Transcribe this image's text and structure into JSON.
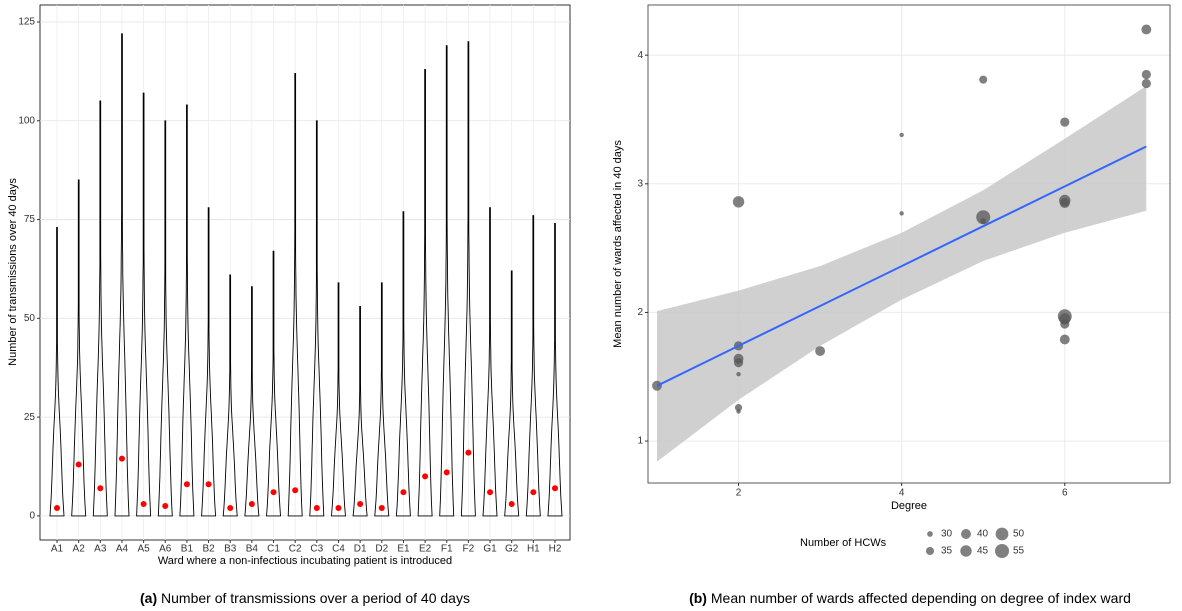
{
  "chart_data": [
    {
      "type": "violin",
      "x_label": "Ward where a non-infectious incubating patient is introduced",
      "y_label": "Number of transmissions over 40 days",
      "caption_label": "(a)",
      "caption": "Number of transmissions over a period of 40 days",
      "categories": [
        "A1",
        "A2",
        "A3",
        "A4",
        "A5",
        "A6",
        "B1",
        "B2",
        "B3",
        "B4",
        "C1",
        "C2",
        "C3",
        "C4",
        "D1",
        "D2",
        "E1",
        "E2",
        "F1",
        "F2",
        "G1",
        "G2",
        "H1",
        "H2"
      ],
      "max_values": [
        73,
        85,
        105,
        122,
        107,
        100,
        104,
        78,
        61,
        58,
        67,
        112,
        100,
        59,
        53,
        59,
        77,
        113,
        119,
        120,
        78,
        62,
        76,
        74
      ],
      "values": [
        2,
        13,
        7,
        14.5,
        3,
        2.5,
        8,
        8,
        2,
        3,
        6,
        6.5,
        2,
        2,
        3,
        2,
        6,
        10,
        11,
        16,
        6,
        3,
        6,
        7
      ],
      "color": "#ff0000",
      "ylim": [
        -6.1,
        129.3
      ],
      "yticks": [
        0,
        25,
        50,
        75,
        100,
        125
      ],
      "grid": true
    },
    {
      "type": "scatter",
      "x_label": "Degree",
      "y_label": "Mean number of wards affected in 40 days",
      "caption_label": "(b)",
      "caption": "Mean number of wards affected depending on degree of index ward",
      "x": [
        1,
        2,
        2,
        2,
        2,
        2,
        2,
        2,
        3,
        4,
        4,
        5,
        5,
        5,
        6,
        6,
        6,
        6,
        6,
        6,
        6,
        7,
        7,
        7
      ],
      "values": [
        1.43,
        2.86,
        1.74,
        1.64,
        1.61,
        1.52,
        1.26,
        1.23,
        1.7,
        3.38,
        2.77,
        3.81,
        2.74,
        2.71,
        3.48,
        2.87,
        2.85,
        1.97,
        1.95,
        1.91,
        1.79,
        4.2,
        3.85,
        3.78
      ],
      "sizes": [
        40,
        45,
        38,
        40,
        38,
        28,
        33,
        28,
        40,
        28,
        28,
        35,
        55,
        30,
        38,
        45,
        40,
        55,
        45,
        38,
        40,
        40,
        38,
        38
      ],
      "color": "#555555",
      "fit": {
        "x": [
          1,
          2,
          3,
          4,
          5,
          6,
          7
        ],
        "values": [
          1.43,
          1.74,
          2.05,
          2.36,
          2.67,
          2.98,
          3.29
        ],
        "lower": [
          0.84,
          1.32,
          1.74,
          2.1,
          2.4,
          2.62,
          2.79
        ],
        "upper": [
          2.01,
          2.17,
          2.36,
          2.62,
          2.95,
          3.35,
          3.76
        ],
        "color": "#3366ff",
        "band_color": "#c8c8c8"
      },
      "size_legend": {
        "title": "Number of HCWs",
        "values": [
          30,
          35,
          40,
          45,
          50,
          55
        ]
      },
      "xlim": [
        0.89,
        7.29
      ],
      "xticks": [
        2,
        4,
        6
      ],
      "ylim": [
        0.674,
        4.39
      ],
      "yticks": [
        1,
        2,
        3,
        4
      ],
      "grid": true
    }
  ]
}
